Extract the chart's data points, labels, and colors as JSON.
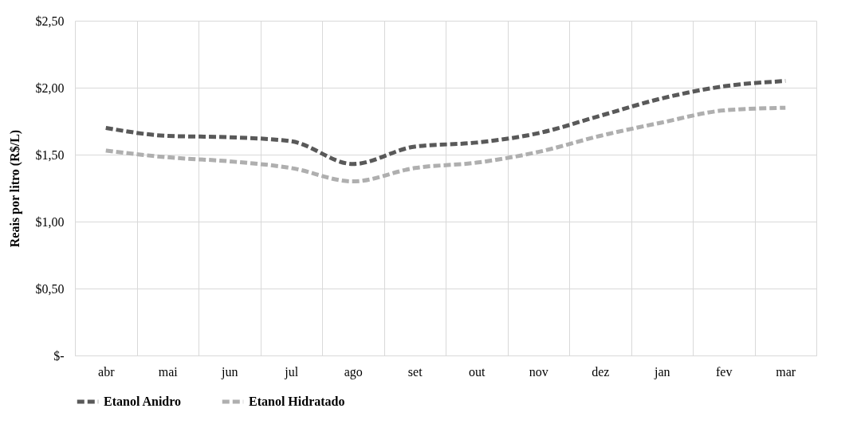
{
  "chart_data": {
    "type": "line",
    "ylabel": "Reais por litro (R$/L)",
    "categories": [
      "abr",
      "mai",
      "jun",
      "jul",
      "ago",
      "set",
      "out",
      "nov",
      "dez",
      "jan",
      "fev",
      "mar"
    ],
    "series": [
      {
        "name": "Etanol Anidro",
        "color": "#595959",
        "values": [
          1.7,
          1.64,
          1.63,
          1.6,
          1.43,
          1.56,
          1.59,
          1.66,
          1.79,
          1.92,
          2.01,
          2.05
        ]
      },
      {
        "name": "Etanol Hidratado",
        "color": "#afafaf",
        "values": [
          1.53,
          1.48,
          1.45,
          1.4,
          1.3,
          1.4,
          1.44,
          1.52,
          1.64,
          1.74,
          1.83,
          1.85
        ]
      }
    ],
    "ylim": [
      0,
      2.5
    ],
    "yticks": [
      {
        "value": 0,
        "label": "$-"
      },
      {
        "value": 0.5,
        "label": "$0,50"
      },
      {
        "value": 1,
        "label": "$1,00"
      },
      {
        "value": 1.5,
        "label": "$1,50"
      },
      {
        "value": 2,
        "label": "$2,00"
      },
      {
        "value": 2.5,
        "label": "$2,50"
      }
    ],
    "grid": true,
    "legend": "bottom",
    "line_style": "dashed",
    "marker": "none"
  }
}
